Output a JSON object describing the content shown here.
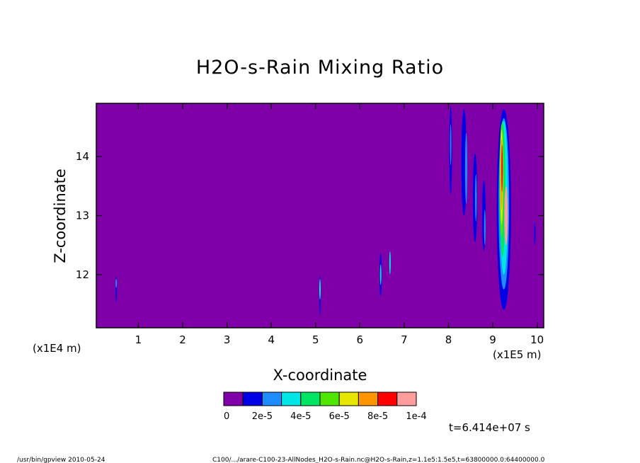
{
  "chart_data": {
    "type": "heatmap",
    "title": "H2O-s-Rain Mixing Ratio",
    "xlabel": "X-coordinate",
    "ylabel": "Z-coordinate",
    "x_scale_note": "(x1E5 m)",
    "y_scale_note": "(x1E4 m)",
    "xlim": [
      0.05,
      10.15
    ],
    "ylim": [
      11.1,
      14.9
    ],
    "x_ticks": [
      1,
      2,
      3,
      4,
      5,
      6,
      7,
      8,
      9,
      10
    ],
    "y_ticks": [
      12,
      13,
      14
    ],
    "colorbar": {
      "colors": [
        "#7f00a8",
        "#0000e6",
        "#1e8cff",
        "#00e6e6",
        "#00e664",
        "#50e600",
        "#e6e600",
        "#ff9600",
        "#ff0000",
        "#ff9c9c"
      ],
      "labels": [
        "0",
        "2e-5",
        "4e-5",
        "6e-5",
        "8e-5",
        "1e-4"
      ]
    },
    "time_label": "t=6.414e+07 s",
    "features": [
      {
        "x": 0.5,
        "z": 11.75,
        "w": 0.03,
        "h": 0.45,
        "level": 1
      },
      {
        "x": 0.5,
        "z": 11.85,
        "w": 0.015,
        "h": 0.15,
        "level": 2
      },
      {
        "x": 5.1,
        "z": 11.65,
        "w": 0.03,
        "h": 0.7,
        "level": 1
      },
      {
        "x": 5.1,
        "z": 11.75,
        "w": 0.015,
        "h": 0.35,
        "level": 3
      },
      {
        "x": 6.47,
        "z": 12.0,
        "w": 0.05,
        "h": 0.75,
        "level": 1
      },
      {
        "x": 6.47,
        "z": 12.0,
        "w": 0.02,
        "h": 0.35,
        "level": 3
      },
      {
        "x": 6.68,
        "z": 12.2,
        "w": 0.03,
        "h": 0.4,
        "level": 3
      },
      {
        "x": 8.05,
        "z": 14.1,
        "w": 0.06,
        "h": 1.5,
        "level": 1
      },
      {
        "x": 8.05,
        "z": 14.2,
        "w": 0.025,
        "h": 0.7,
        "level": 2
      },
      {
        "x": 8.35,
        "z": 13.9,
        "w": 0.12,
        "h": 1.8,
        "level": 1
      },
      {
        "x": 8.4,
        "z": 13.8,
        "w": 0.05,
        "h": 1.2,
        "level": 2
      },
      {
        "x": 8.6,
        "z": 13.3,
        "w": 0.1,
        "h": 1.5,
        "level": 1
      },
      {
        "x": 8.62,
        "z": 13.3,
        "w": 0.04,
        "h": 0.8,
        "level": 2
      },
      {
        "x": 8.8,
        "z": 13.0,
        "w": 0.08,
        "h": 1.2,
        "level": 1
      },
      {
        "x": 8.82,
        "z": 12.8,
        "w": 0.035,
        "h": 0.6,
        "level": 2
      },
      {
        "x": 9.25,
        "z": 13.1,
        "w": 0.32,
        "h": 3.4,
        "level": 1
      },
      {
        "x": 9.25,
        "z": 13.2,
        "w": 0.24,
        "h": 2.9,
        "level": 2
      },
      {
        "x": 9.25,
        "z": 13.3,
        "w": 0.18,
        "h": 2.6,
        "level": 3
      },
      {
        "x": 9.22,
        "z": 13.45,
        "w": 0.13,
        "h": 2.3,
        "level": 4
      },
      {
        "x": 9.2,
        "z": 13.6,
        "w": 0.09,
        "h": 1.9,
        "level": 5
      },
      {
        "x": 9.2,
        "z": 13.65,
        "w": 0.06,
        "h": 1.6,
        "level": 6
      },
      {
        "x": 9.2,
        "z": 13.7,
        "w": 0.04,
        "h": 1.2,
        "level": 7
      },
      {
        "x": 9.21,
        "z": 13.8,
        "w": 0.025,
        "h": 0.8,
        "level": 8
      },
      {
        "x": 9.3,
        "z": 13.0,
        "w": 0.08,
        "h": 1.0,
        "level": 9
      },
      {
        "x": 9.95,
        "z": 12.7,
        "w": 0.03,
        "h": 0.4,
        "level": 1
      }
    ]
  },
  "footer": {
    "left": "/usr/bin/gpview  2010-05-24",
    "right": "C100/.../arare-C100-23-AllNodes_H2O-s-Rain.nc@H2O-s-Rain,z=1.1e5:1.5e5,t=63800000.0:64400000.0"
  }
}
